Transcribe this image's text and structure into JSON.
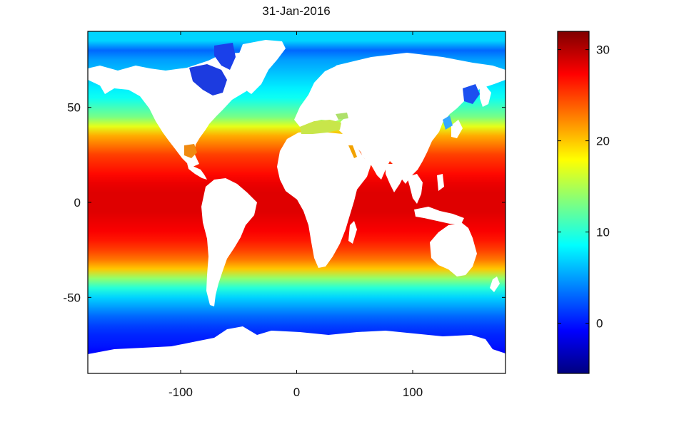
{
  "chart_data": {
    "type": "heatmap",
    "title": "31-Jan-2016",
    "xlabel": "",
    "ylabel": "",
    "xlim": [
      -180,
      180
    ],
    "ylim": [
      -90,
      90
    ],
    "x_ticks": [
      -100,
      0,
      100
    ],
    "y_ticks": [
      50,
      0,
      -50
    ],
    "colorbar": {
      "colormap": "jet",
      "range": [
        -5.5,
        32
      ],
      "ticks": [
        30,
        20,
        10,
        0
      ],
      "stops": [
        "#00007f",
        "#0000ff",
        "#007fff",
        "#00ffff",
        "#7fff7f",
        "#ffff00",
        "#ff7f00",
        "#ff0000",
        "#7f0000"
      ]
    },
    "land_color": "#ffffff",
    "latitude_profile": {
      "lat": [
        85,
        80,
        75,
        70,
        65,
        60,
        55,
        50,
        45,
        40,
        35,
        30,
        25,
        20,
        15,
        10,
        5,
        0,
        -5,
        -10,
        -15,
        -20,
        -25,
        -30,
        -35,
        -40,
        -45,
        -50,
        -55,
        -60,
        -65,
        -70,
        -75,
        -78
      ],
      "sst": [
        7,
        3,
        5,
        6,
        7,
        8,
        9,
        11,
        13,
        17,
        21,
        23,
        25,
        26,
        27,
        28,
        28.5,
        28.5,
        28.5,
        28,
        27.5,
        26.5,
        25,
        23,
        20,
        14,
        10,
        7,
        5,
        3,
        1.5,
        0.5,
        0,
        -0.5
      ]
    }
  }
}
